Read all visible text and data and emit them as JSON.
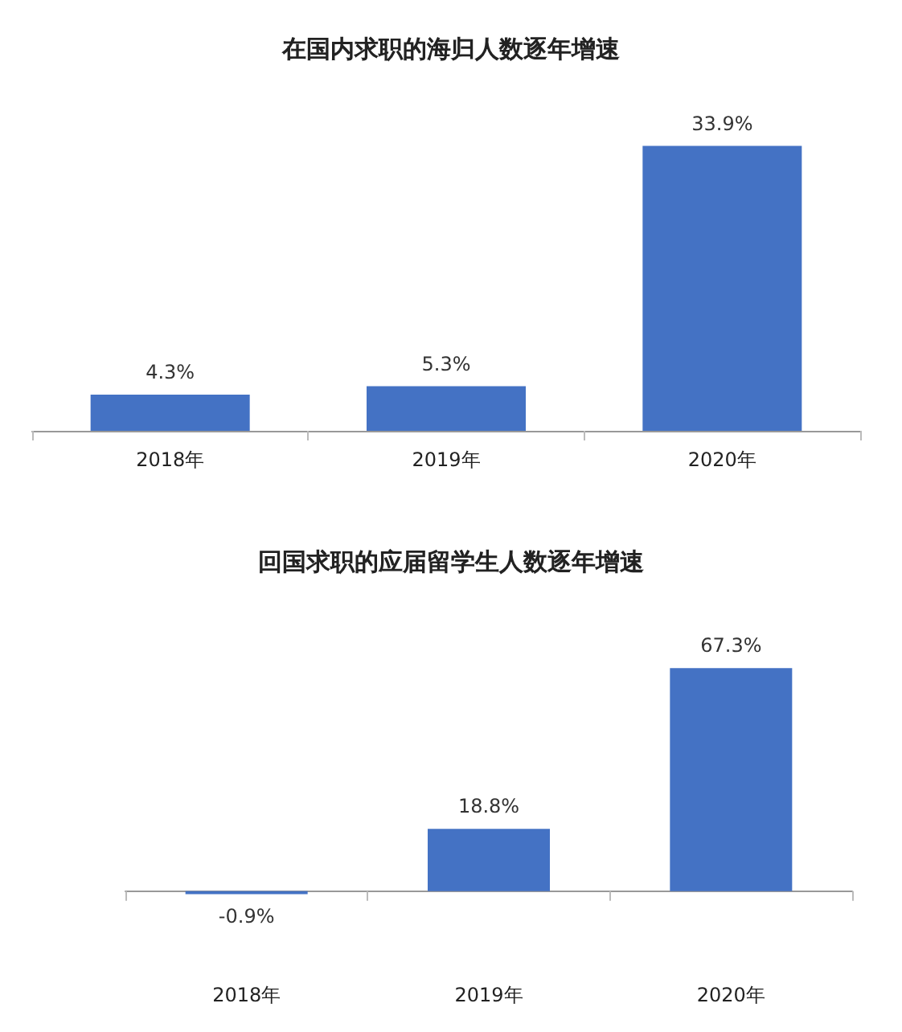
{
  "chart_data": [
    {
      "type": "bar",
      "title": "在国内求职的海归人数逐年增速",
      "categories": [
        "2018年",
        "2019年",
        "2020年"
      ],
      "series": [
        {
          "color": "#4472c4",
          "values": [
            4.3,
            5.3,
            33.9
          ],
          "value_labels": [
            "4.3%",
            "5.3%",
            "33.9%"
          ]
        }
      ]
    },
    {
      "type": "bar",
      "title": "回国求职的应届留学生人数逐年增速",
      "categories": [
        "2018年",
        "2019年",
        "2020年"
      ],
      "series": [
        {
          "color": "#4472c4",
          "values": [
            -0.9,
            18.8,
            67.3
          ],
          "value_labels": [
            "-0.9%",
            "18.8%",
            "67.3%"
          ]
        }
      ]
    }
  ]
}
